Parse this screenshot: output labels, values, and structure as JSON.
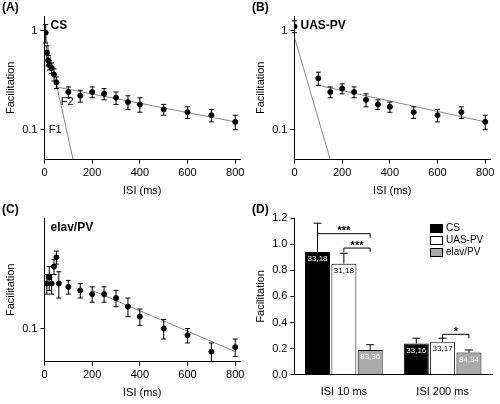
{
  "chart_data": [
    {
      "type": "scatter",
      "panel": "(A)",
      "title": "CS",
      "x_label": "ISI (ms)",
      "y_label": "Facilitation",
      "log": "y",
      "grid": false,
      "xlim": [
        0,
        820
      ],
      "xticks": [
        0,
        200,
        400,
        600,
        800
      ],
      "ylim": [
        0.05,
        1.4
      ],
      "yticks": [
        0.1,
        1
      ],
      "series": [
        {
          "type": "scatter",
          "color": "#000000",
          "marker": "circle",
          "x": [
            5,
            10,
            15,
            20,
            30,
            40,
            50,
            100,
            150,
            200,
            250,
            300,
            350,
            400,
            500,
            600,
            700,
            800
          ],
          "values": [
            0.95,
            0.6,
            0.5,
            0.45,
            0.42,
            0.36,
            0.3,
            0.24,
            0.22,
            0.24,
            0.23,
            0.21,
            0.19,
            0.18,
            0.16,
            0.15,
            0.14,
            0.12
          ],
          "errors": [
            0.2,
            0.1,
            0.06,
            0.05,
            0.05,
            0.05,
            0.04,
            0.03,
            0.03,
            0.03,
            0.03,
            0.03,
            0.03,
            0.03,
            0.02,
            0.02,
            0.02,
            0.02
          ]
        },
        {
          "type": "line",
          "name": "F1",
          "color": "#888888",
          "marker": "none",
          "line_style": "solid",
          "x": [
            0,
            120
          ],
          "values": [
            1.0,
            0.05
          ]
        },
        {
          "type": "line",
          "name": "F2",
          "color": "#888888",
          "marker": "none",
          "line_style": "solid",
          "x": [
            50,
            800
          ],
          "values": [
            0.27,
            0.12
          ]
        }
      ],
      "annotations": [
        {
          "text": "F1",
          "x": 45,
          "y": 0.1
        },
        {
          "text": "F2",
          "x": 95,
          "y": 0.19
        }
      ]
    },
    {
      "type": "scatter",
      "panel": "(B)",
      "title": "UAS-PV",
      "x_label": "ISI (ms)",
      "y_label": "Facilitation",
      "log": "y",
      "grid": false,
      "xlim": [
        0,
        820
      ],
      "xticks": [
        0,
        200,
        400,
        600,
        800
      ],
      "ylim": [
        0.05,
        1.4
      ],
      "yticks": [
        0.1,
        1
      ],
      "series": [
        {
          "type": "scatter",
          "color": "#000000",
          "marker": "circle",
          "x": [
            0,
            100,
            150,
            200,
            250,
            300,
            350,
            400,
            500,
            600,
            700,
            800
          ],
          "values": [
            1.1,
            0.33,
            0.24,
            0.26,
            0.24,
            0.2,
            0.18,
            0.17,
            0.15,
            0.14,
            0.15,
            0.12
          ],
          "errors": [
            0.15,
            0.05,
            0.03,
            0.03,
            0.03,
            0.03,
            0.02,
            0.02,
            0.02,
            0.02,
            0.02,
            0.02
          ]
        },
        {
          "type": "line",
          "color": "#888888",
          "marker": "none",
          "line_style": "solid",
          "x": [
            0,
            150
          ],
          "values": [
            0.85,
            0.05
          ]
        },
        {
          "type": "line",
          "color": "#888888",
          "marker": "none",
          "line_style": "solid",
          "x": [
            100,
            800
          ],
          "values": [
            0.28,
            0.12
          ]
        }
      ]
    },
    {
      "type": "scatter",
      "panel": "(C)",
      "title": "elav/PV",
      "x_label": "ISI (ms)",
      "y_label": "Facilitation",
      "log": "y",
      "grid": false,
      "xlim": [
        0,
        820
      ],
      "xticks": [
        0,
        200,
        400,
        600,
        800
      ],
      "ylim": [
        0.06,
        0.55
      ],
      "yticks": [
        0.1
      ],
      "series": [
        {
          "type": "scatter",
          "color": "#000000",
          "marker": "circle",
          "x": [
            10,
            20,
            30,
            40,
            50,
            60,
            100,
            150,
            200,
            250,
            300,
            350,
            400,
            500,
            600,
            700,
            800
          ],
          "values": [
            0.2,
            0.22,
            0.2,
            0.26,
            0.3,
            0.2,
            0.19,
            0.18,
            0.17,
            0.17,
            0.16,
            0.14,
            0.12,
            0.1,
            0.09,
            0.07,
            0.075
          ],
          "errors": [
            0.03,
            0.04,
            0.03,
            0.03,
            0.03,
            0.04,
            0.02,
            0.02,
            0.02,
            0.02,
            0.02,
            0.02,
            0.015,
            0.015,
            0.01,
            0.01,
            0.01
          ]
        },
        {
          "type": "line",
          "color": "#888888",
          "marker": "none",
          "line_style": "solid",
          "x": [
            200,
            800
          ],
          "values": [
            0.18,
            0.07
          ]
        }
      ]
    },
    {
      "type": "bar",
      "panel": "(D)",
      "y_label": "Facilitation",
      "grid": false,
      "legend": "upper right",
      "categories": [
        "ISI 10 ms",
        "ISI 200 ms"
      ],
      "ylim": [
        0,
        1.2
      ],
      "yticks": [
        {
          "value": 0,
          "label": "0.0"
        },
        {
          "value": 0.2,
          "label": "0.2"
        },
        {
          "value": 0.4,
          "label": "0.4"
        },
        {
          "value": 0.6,
          "label": "0.6"
        },
        {
          "value": 0.8,
          "label": "0.8"
        },
        {
          "value": 1.0,
          "label": "1.0"
        },
        {
          "value": 1.2,
          "label": "1.2"
        }
      ],
      "series": [
        {
          "name": "CS",
          "color": "#000000",
          "values": [
            0.94,
            0.24
          ],
          "errors": [
            0.22,
            0.04
          ],
          "n_labels": [
            "33,18",
            "33,16"
          ]
        },
        {
          "name": "UAS-PV",
          "color": "#ffffff",
          "values": [
            0.85,
            0.25
          ],
          "errors": [
            0.08,
            0.03
          ],
          "n_labels": [
            "31,18",
            "33,17"
          ]
        },
        {
          "name": "elav/PV",
          "color": "#aaaaaa",
          "values": [
            0.19,
            0.17
          ],
          "errors": [
            0.04,
            0.02
          ],
          "n_labels": [
            "83,36",
            "84,34"
          ]
        }
      ],
      "significance": [
        {
          "text": "***",
          "category": 0,
          "from": "CS",
          "to": "elav/PV",
          "y": 1.08
        },
        {
          "text": "***",
          "category": 0,
          "from": "UAS-PV",
          "to": "elav/PV",
          "y": 0.97
        },
        {
          "text": "*",
          "category": 1,
          "from": "UAS-PV",
          "to": "elav/PV",
          "y": 0.31
        }
      ]
    }
  ]
}
